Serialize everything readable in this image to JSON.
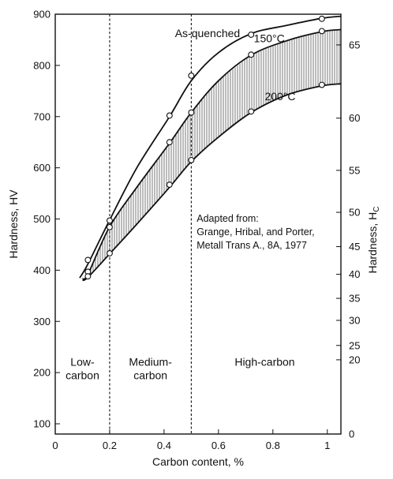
{
  "chart_data": {
    "type": "line",
    "title": "",
    "xlabel": "Carbon content, %",
    "ylabel": "Hardness, HV",
    "y2label": "Hardness, H",
    "y2label_sub": "C",
    "xlim": [
      0,
      1.05
    ],
    "ylim": [
      80,
      900
    ],
    "x_ticks": [
      {
        "value": 0,
        "label": "0"
      },
      {
        "value": 0.2,
        "label": "0.2"
      },
      {
        "value": 0.4,
        "label": "0.4"
      },
      {
        "value": 0.6,
        "label": "0.6"
      },
      {
        "value": 0.8,
        "label": "0.8"
      },
      {
        "value": 1.0,
        "label": "1"
      }
    ],
    "y_ticks": [
      {
        "value": 100,
        "label": "100"
      },
      {
        "value": 200,
        "label": "200"
      },
      {
        "value": 300,
        "label": "300"
      },
      {
        "value": 400,
        "label": "400"
      },
      {
        "value": 500,
        "label": "500"
      },
      {
        "value": 600,
        "label": "600"
      },
      {
        "value": 700,
        "label": "700"
      },
      {
        "value": 800,
        "label": "800"
      },
      {
        "value": 900,
        "label": "900"
      }
    ],
    "y2_ticks": [
      {
        "hv": 80,
        "label": "0"
      },
      {
        "hv": 225,
        "label": "20"
      },
      {
        "hv": 253,
        "label": "25"
      },
      {
        "hv": 302,
        "label": "30"
      },
      {
        "hv": 345,
        "label": "35"
      },
      {
        "hv": 392,
        "label": "40"
      },
      {
        "hv": 446,
        "label": "45"
      },
      {
        "hv": 513,
        "label": "50"
      },
      {
        "hv": 595,
        "label": "55"
      },
      {
        "hv": 697,
        "label": "60"
      },
      {
        "hv": 840,
        "label": "65"
      }
    ],
    "region_dividers": [
      0.2,
      0.5
    ],
    "regions": [
      {
        "line1": "Low-",
        "line2": "carbon",
        "x": 0.1
      },
      {
        "line1": "Medium-",
        "line2": "carbon",
        "x": 0.35
      },
      {
        "line1": "High-carbon",
        "line2": "",
        "x": 0.77
      }
    ],
    "series": [
      {
        "name": "As-quenched",
        "curve": [
          [
            0.09,
            385
          ],
          [
            0.12,
            412
          ],
          [
            0.2,
            498
          ],
          [
            0.3,
            600
          ],
          [
            0.42,
            700
          ],
          [
            0.5,
            770
          ],
          [
            0.6,
            825
          ],
          [
            0.72,
            862
          ],
          [
            0.85,
            878
          ],
          [
            0.98,
            892
          ],
          [
            1.05,
            896
          ]
        ],
        "points": [
          [
            0.12,
            420
          ],
          [
            0.2,
            497
          ],
          [
            0.42,
            702
          ],
          [
            0.5,
            780
          ],
          [
            0.72,
            860
          ],
          [
            0.98,
            891
          ]
        ]
      },
      {
        "name": "150°C",
        "curve": [
          [
            0.1,
            383
          ],
          [
            0.12,
            392
          ],
          [
            0.2,
            485
          ],
          [
            0.3,
            562
          ],
          [
            0.42,
            648
          ],
          [
            0.5,
            708
          ],
          [
            0.6,
            770
          ],
          [
            0.72,
            820
          ],
          [
            0.85,
            848
          ],
          [
            0.98,
            866
          ],
          [
            1.05,
            870
          ]
        ],
        "points": [
          [
            0.12,
            397
          ],
          [
            0.2,
            484
          ],
          [
            0.42,
            650
          ],
          [
            0.5,
            708
          ],
          [
            0.72,
            821
          ],
          [
            0.98,
            867
          ]
        ]
      },
      {
        "name": "200°C",
        "curve": [
          [
            0.1,
            380
          ],
          [
            0.12,
            386
          ],
          [
            0.2,
            432
          ],
          [
            0.3,
            490
          ],
          [
            0.42,
            562
          ],
          [
            0.5,
            612
          ],
          [
            0.6,
            660
          ],
          [
            0.72,
            708
          ],
          [
            0.85,
            742
          ],
          [
            0.98,
            760
          ],
          [
            1.05,
            764
          ]
        ],
        "points": [
          [
            0.12,
            388
          ],
          [
            0.2,
            433
          ],
          [
            0.42,
            567
          ],
          [
            0.5,
            615
          ],
          [
            0.72,
            710
          ],
          [
            0.98,
            762
          ]
        ]
      }
    ],
    "annotations": [
      {
        "text": "As-quenched",
        "x": 0.44,
        "hv": 855
      },
      {
        "text": "150°C",
        "x": 0.73,
        "hv": 845
      },
      {
        "text": "200°C",
        "x": 0.77,
        "hv": 732
      }
    ],
    "note": {
      "lines": [
        "Adapted from:",
        "Grange, Hribal, and Porter,",
        "Metall Trans A., 8A, 1977"
      ],
      "x": 0.52,
      "hv": 495
    }
  }
}
